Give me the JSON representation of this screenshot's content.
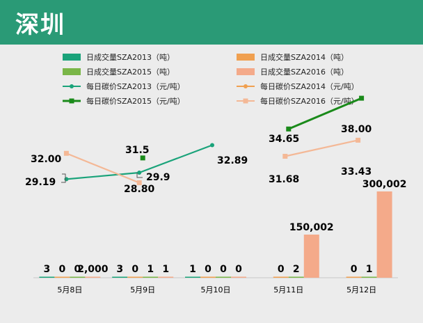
{
  "page_title": "深圳",
  "chart_data": {
    "type": "bar",
    "categories": [
      "5月8日",
      "5月9日",
      "5月10日",
      "5月11日",
      "5月12日"
    ],
    "bar_series": [
      {
        "name": "日成交量SZA2013（吨）",
        "color": "#1aa37a",
        "values": [
          3,
          3,
          1,
          null,
          null
        ],
        "labels": [
          "3",
          "3",
          "1",
          "",
          ""
        ]
      },
      {
        "name": "日成交量SZA2014（吨）",
        "color": "#f0a050",
        "values": [
          0,
          0,
          0,
          0,
          0
        ],
        "labels": [
          "0",
          "0",
          "0",
          "0",
          "0"
        ]
      },
      {
        "name": "日成交量SZA2015（吨）",
        "color": "#7ab648",
        "values": [
          0,
          1,
          0,
          2,
          1
        ],
        "labels": [
          "0",
          "1",
          "0",
          "2",
          "1"
        ]
      },
      {
        "name": "日成交量SZA2016（吨）",
        "color": "#f4aa8a",
        "values": [
          2000,
          1,
          0,
          150002,
          300002
        ],
        "labels": [
          "2,000",
          "1",
          "0",
          "150,002",
          "300,002"
        ]
      }
    ],
    "line_series": [
      {
        "name": "每日碳价SZA2013（元/吨）",
        "color": "#1aa37a",
        "values": [
          29.19,
          29.9,
          32.89,
          null,
          null
        ],
        "labels": [
          "29.19",
          "29.9",
          "32.89",
          "",
          ""
        ]
      },
      {
        "name": "每日碳价SZA2014（元/吨）",
        "color": "#f0a050",
        "values": [
          null,
          null,
          null,
          null,
          null
        ],
        "labels": [
          "",
          "",
          "",
          "",
          ""
        ]
      },
      {
        "name": "每日碳价SZA2015（元/吨）",
        "color": "#1a8a1a",
        "values": [
          null,
          31.5,
          null,
          34.65,
          38.0
        ],
        "labels": [
          "",
          "31.5",
          "",
          "34.65",
          "38.00"
        ]
      },
      {
        "name": "每日碳价SZA2016（元/吨）",
        "color": "#f4b896",
        "values": [
          32.0,
          28.8,
          null,
          31.68,
          33.43
        ],
        "labels": [
          "32.00",
          "28.80",
          "",
          "31.68",
          "33.43"
        ]
      }
    ],
    "legend_position": "top",
    "grid": false
  }
}
